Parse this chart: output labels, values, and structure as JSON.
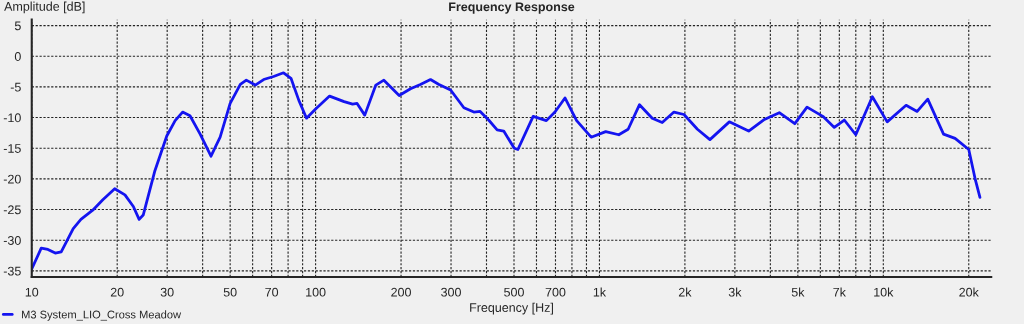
{
  "chart_data": {
    "type": "line",
    "title": "Frequency Response",
    "xlabel": "Frequency [Hz]",
    "ylabel": "Amplitude [dB]",
    "log": "x",
    "xlim": [
      10,
      24000
    ],
    "ylim": [
      -36,
      6
    ],
    "xticks": [
      10,
      20,
      30,
      {
        "value": 40,
        "label": null
      },
      50,
      {
        "value": 60,
        "label": null
      },
      70,
      {
        "value": 80,
        "label": null
      },
      {
        "value": 90,
        "label": null
      },
      100,
      200,
      300,
      {
        "value": 400,
        "label": null
      },
      500,
      {
        "value": 600,
        "label": null
      },
      700,
      {
        "value": 800,
        "label": null
      },
      {
        "value": 900,
        "label": null
      },
      {
        "value": 1000,
        "label": "1k"
      },
      {
        "value": 2000,
        "label": "2k"
      },
      {
        "value": 3000,
        "label": "3k"
      },
      {
        "value": 4000,
        "label": null
      },
      {
        "value": 5000,
        "label": "5k"
      },
      {
        "value": 6000,
        "label": null
      },
      {
        "value": 7000,
        "label": "7k"
      },
      {
        "value": 8000,
        "label": null
      },
      {
        "value": 9000,
        "label": null
      },
      {
        "value": 10000,
        "label": "10k"
      },
      {
        "value": 20000,
        "label": "20k"
      }
    ],
    "yticks": [
      5,
      0,
      -5,
      -10,
      -15,
      -20,
      -25,
      -30,
      -35
    ],
    "grid": true,
    "legend": "bottom left",
    "marker": "none",
    "line_style": "solid",
    "series": [
      {
        "name": "M3 System_LIO_Cross Meadow",
        "color": "#1414f0",
        "x": [
          10,
          10.8,
          11.4,
          12.1,
          12.7,
          14.0,
          14.9,
          16.4,
          17.8,
          19.6,
          21.3,
          22.8,
          23.9,
          24.7,
          27.1,
          29.9,
          32.0,
          34.0,
          36.1,
          39.2,
          42.8,
          46.1,
          50.0,
          54.3,
          57.0,
          61.3,
          65.6,
          71.1,
          77.1,
          81.9,
          87.3,
          92.9,
          100,
          112,
          126,
          135,
          140,
          149,
          163,
          174,
          197,
          216,
          234,
          254,
          272,
          299,
          333,
          361,
          380,
          407,
          436,
          460,
          501,
          516,
          584,
          650,
          697,
          756,
          831,
          935,
          1052,
          1170,
          1262,
          1384,
          1534,
          1664,
          1830,
          1985,
          2214,
          2450,
          2868,
          3355,
          3812,
          4301,
          4877,
          5386,
          6124,
          6720,
          7287,
          8000,
          9150,
          10320,
          12030,
          13160,
          14340,
          16300,
          17900,
          20000,
          21040,
          21900
        ],
        "values": [
          -34.7,
          -31.3,
          -31.5,
          -32.1,
          -31.9,
          -28.1,
          -26.6,
          -25.1,
          -23.4,
          -21.6,
          -22.6,
          -24.5,
          -26.6,
          -25.9,
          -18.8,
          -13.0,
          -10.5,
          -9.1,
          -9.7,
          -12.7,
          -16.3,
          -13.2,
          -7.7,
          -4.6,
          -3.9,
          -4.7,
          -3.8,
          -3.3,
          -2.7,
          -3.6,
          -7.2,
          -10.1,
          -8.6,
          -6.5,
          -7.4,
          -7.8,
          -7.7,
          -9.6,
          -4.7,
          -3.9,
          -6.4,
          -5.3,
          -4.6,
          -3.8,
          -4.6,
          -5.5,
          -8.4,
          -9.1,
          -9.0,
          -10.4,
          -12.0,
          -12.2,
          -15.0,
          -15.2,
          -9.8,
          -10.5,
          -9.1,
          -6.8,
          -10.5,
          -13.2,
          -12.3,
          -12.8,
          -11.9,
          -7.9,
          -10.1,
          -10.8,
          -9.1,
          -9.5,
          -11.9,
          -13.6,
          -10.7,
          -12.2,
          -10.3,
          -9.2,
          -11.0,
          -8.3,
          -9.8,
          -11.6,
          -10.4,
          -12.8,
          -6.6,
          -10.7,
          -8.0,
          -9.0,
          -7.0,
          -12.7,
          -13.4,
          -15.2,
          -19.9,
          -23.0
        ]
      }
    ]
  }
}
